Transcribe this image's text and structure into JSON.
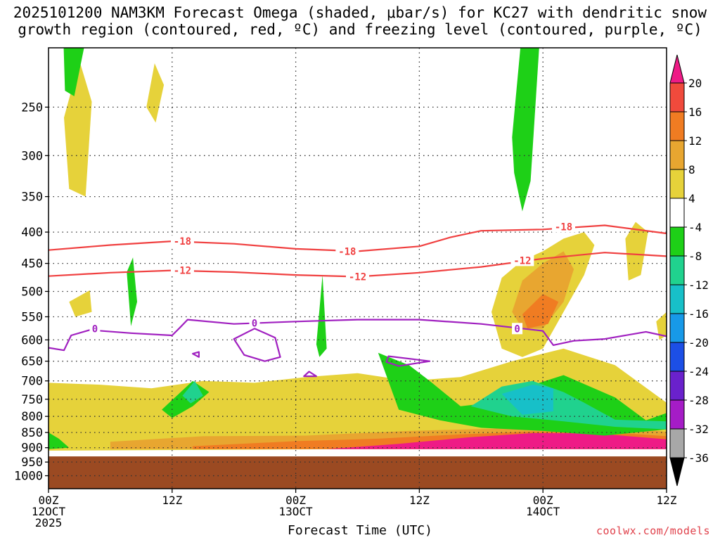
{
  "chart_data": {
    "type": "heatmap",
    "title_line1": "2025101200 NAM3KM Forecast Omega (shaded, μbar/s) for KC27 with dendritic snow",
    "title_line2": "growth region (contoured, red, ºC) and freezing level (contoured, purple, ºC)",
    "xlabel": "Forecast Time (UTC)",
    "ylabel": "",
    "x_ticks": [
      {
        "hour": 0,
        "line1": "00Z",
        "line2": "12OCT",
        "line3": "2025"
      },
      {
        "hour": 12,
        "line1": "12Z",
        "line2": "",
        "line3": ""
      },
      {
        "hour": 24,
        "line1": "00Z",
        "line2": "13OCT",
        "line3": ""
      },
      {
        "hour": 36,
        "line1": "12Z",
        "line2": "",
        "line3": ""
      },
      {
        "hour": 48,
        "line1": "00Z",
        "line2": "14OCT",
        "line3": ""
      },
      {
        "hour": 60,
        "line1": "12Z",
        "line2": "",
        "line3": ""
      }
    ],
    "xlim": [
      0,
      60
    ],
    "y_ticks": [
      "250",
      "300",
      "350",
      "400",
      "450",
      "500",
      "550",
      "600",
      "650",
      "700",
      "750",
      "800",
      "850",
      "900",
      "950",
      "1000"
    ],
    "ylim": [
      200,
      1050
    ],
    "y_scale": "log",
    "grid": true,
    "colorbar": {
      "labels": [
        "20",
        "16",
        "12",
        "8",
        "4",
        "-4",
        "-8",
        "-12",
        "-16",
        "-20",
        "-24",
        "-28",
        "-32",
        "-36"
      ],
      "colors": [
        "#ee1b86",
        "#f04a3c",
        "#f07c22",
        "#e8a630",
        "#e6d23a",
        "#ffffff",
        "#1ed017",
        "#20d28e",
        "#17c0c8",
        "#1799e8",
        "#1c4fe6",
        "#6a21cc",
        "#a51cc6",
        "#a8a8a8",
        "#000000"
      ],
      "placement": "right"
    },
    "ground_color": "#9b4a22",
    "contours": {
      "dgz_color": "#f04040",
      "freezing_color": "#a020c0",
      "dgz": [
        {
          "label": "-18",
          "points": [
            [
              0,
              428
            ],
            [
              6,
              420
            ],
            [
              12,
              414
            ],
            [
              18,
              418
            ],
            [
              24,
              426
            ],
            [
              30,
              430
            ],
            [
              36,
              422
            ],
            [
              39,
              408
            ],
            [
              42,
              398
            ],
            [
              48,
              396
            ],
            [
              54,
              390
            ],
            [
              60,
              402
            ]
          ],
          "labels_at": [
            [
              13,
              414
            ],
            [
              29,
              430
            ],
            [
              50,
              392
            ]
          ]
        },
        {
          "label": "-12",
          "points": [
            [
              0,
              472
            ],
            [
              6,
              466
            ],
            [
              12,
              462
            ],
            [
              18,
              465
            ],
            [
              24,
              470
            ],
            [
              30,
              473
            ],
            [
              36,
              466
            ],
            [
              42,
              456
            ],
            [
              48,
              442
            ],
            [
              54,
              432
            ],
            [
              60,
              438
            ]
          ],
          "labels_at": [
            [
              13,
              462
            ],
            [
              30,
              473
            ],
            [
              46,
              445
            ]
          ]
        }
      ],
      "freezing": [
        {
          "label": "0",
          "points": [
            [
              0,
              618
            ],
            [
              1.5,
              624
            ],
            [
              2.2,
              590
            ],
            [
              4,
              578
            ],
            [
              8,
              585
            ],
            [
              12,
              590
            ],
            [
              12.8,
              572
            ],
            [
              13.5,
              556
            ],
            [
              18,
              565
            ],
            [
              24,
              560
            ],
            [
              30,
              556
            ],
            [
              36,
              556
            ],
            [
              42,
              565
            ],
            [
              48,
              580
            ],
            [
              49,
              612
            ],
            [
              51,
              602
            ],
            [
              54,
              598
            ],
            [
              58,
              582
            ],
            [
              60,
              592
            ]
          ],
          "labels_at": [
            [
              4.5,
              575
            ],
            [
              20,
              563
            ],
            [
              45.5,
              575
            ]
          ]
        },
        {
          "label": "",
          "closed": true,
          "points": [
            [
              18,
              598
            ],
            [
              20,
              575
            ],
            [
              22,
              595
            ],
            [
              22.5,
              640
            ],
            [
              21,
              650
            ],
            [
              19,
              635
            ]
          ],
          "labels_at": []
        },
        {
          "label": "",
          "closed": true,
          "points": [
            [
              32.8,
              652
            ],
            [
              33,
              638
            ],
            [
              37,
              650
            ],
            [
              34,
              662
            ]
          ],
          "labels_at": []
        },
        {
          "label": "",
          "closed": true,
          "points": [
            [
              24.8,
              688
            ],
            [
              25.3,
              676
            ],
            [
              26,
              688
            ]
          ],
          "labels_at": []
        },
        {
          "label": "",
          "closed": true,
          "points": [
            [
              14,
              632
            ],
            [
              14.6,
              628
            ],
            [
              14.6,
              640
            ]
          ],
          "labels_at": []
        }
      ]
    },
    "shaded_regions": [
      {
        "value": 4,
        "points": [
          [
            0,
            705
          ],
          [
            5,
            710
          ],
          [
            10,
            720
          ],
          [
            15,
            700
          ],
          [
            20,
            705
          ],
          [
            25,
            690
          ],
          [
            30,
            680
          ],
          [
            35,
            700
          ],
          [
            40,
            690
          ],
          [
            45,
            650
          ],
          [
            50,
            620
          ],
          [
            55,
            660
          ],
          [
            60,
            760
          ],
          [
            60,
            900
          ],
          [
            0,
            910
          ]
        ]
      },
      {
        "value": 8,
        "points": [
          [
            6,
            880
          ],
          [
            15,
            862
          ],
          [
            25,
            860
          ],
          [
            35,
            845
          ],
          [
            43,
            838
          ],
          [
            50,
            826
          ],
          [
            56,
            832
          ],
          [
            60,
            848
          ],
          [
            60,
            905
          ],
          [
            6,
            905
          ]
        ]
      },
      {
        "value": 12,
        "points": [
          [
            14,
            895
          ],
          [
            24,
            878
          ],
          [
            32,
            870
          ],
          [
            40,
            856
          ],
          [
            47,
            847
          ],
          [
            54,
            848
          ],
          [
            60,
            862
          ],
          [
            60,
            905
          ],
          [
            14,
            905
          ]
        ]
      },
      {
        "value": 20,
        "points": [
          [
            27,
            905
          ],
          [
            34,
            887
          ],
          [
            41,
            865
          ],
          [
            47,
            852
          ],
          [
            53,
            853
          ],
          [
            60,
            872
          ],
          [
            60,
            905
          ]
        ]
      },
      {
        "value": -4,
        "points": [
          [
            32,
            630
          ],
          [
            35,
            660
          ],
          [
            37,
            700
          ],
          [
            40,
            770
          ],
          [
            43,
            760
          ],
          [
            46,
            720
          ],
          [
            50,
            685
          ],
          [
            55,
            745
          ],
          [
            58,
            812
          ],
          [
            60,
            790
          ],
          [
            60,
            840
          ],
          [
            54,
            860
          ],
          [
            48,
            845
          ],
          [
            42,
            835
          ],
          [
            38,
            812
          ],
          [
            34,
            780
          ]
        ]
      },
      {
        "value": -8,
        "points": [
          [
            41,
            770
          ],
          [
            44,
            715
          ],
          [
            47,
            700
          ],
          [
            50,
            730
          ],
          [
            52,
            760
          ],
          [
            55,
            810
          ],
          [
            60,
            815
          ],
          [
            60,
            840
          ],
          [
            55,
            832
          ],
          [
            50,
            815
          ],
          [
            45,
            800
          ]
        ]
      },
      {
        "value": -12,
        "points": [
          [
            44,
            735
          ],
          [
            47,
            710
          ],
          [
            49,
            720
          ],
          [
            49,
            785
          ],
          [
            46,
            795
          ]
        ]
      },
      {
        "value": 4,
        "points": [
          [
            43,
            540
          ],
          [
            44,
            475
          ],
          [
            46,
            445
          ],
          [
            48,
            430
          ],
          [
            50,
            410
          ],
          [
            52,
            400
          ],
          [
            53,
            420
          ],
          [
            52,
            470
          ],
          [
            50,
            540
          ],
          [
            48,
            620
          ],
          [
            46,
            640
          ],
          [
            44,
            620
          ]
        ]
      },
      {
        "value": 8,
        "points": [
          [
            45,
            540
          ],
          [
            46,
            480
          ],
          [
            48,
            450
          ],
          [
            50,
            430
          ],
          [
            51,
            460
          ],
          [
            50,
            520
          ],
          [
            48,
            575
          ],
          [
            46,
            575
          ]
        ]
      },
      {
        "value": 12,
        "points": [
          [
            46,
            545
          ],
          [
            48,
            505
          ],
          [
            49.5,
            520
          ],
          [
            48.5,
            565
          ],
          [
            46.5,
            575
          ]
        ]
      },
      {
        "value": 4,
        "points": [
          [
            1.5,
            260
          ],
          [
            3,
            210
          ],
          [
            4.2,
            245
          ],
          [
            3.6,
            350
          ],
          [
            2,
            340
          ]
        ]
      },
      {
        "value": 4,
        "points": [
          [
            2,
            520
          ],
          [
            4,
            498
          ],
          [
            4.2,
            540
          ],
          [
            2.6,
            550
          ]
        ]
      },
      {
        "value": 4,
        "points": [
          [
            9.5,
            250
          ],
          [
            10.3,
            212
          ],
          [
            11.2,
            230
          ],
          [
            10.4,
            265
          ]
        ]
      },
      {
        "value": -4,
        "points": [
          [
            1.3,
            160
          ],
          [
            3.5,
            120
          ],
          [
            4,
            180
          ],
          [
            2.5,
            240
          ],
          [
            1.6,
            235
          ]
        ]
      },
      {
        "value": -4,
        "points": [
          [
            45,
            280
          ],
          [
            46.5,
            150
          ],
          [
            48,
            160
          ],
          [
            46.8,
            330
          ],
          [
            46,
            370
          ],
          [
            45.2,
            320
          ]
        ]
      },
      {
        "value": -4,
        "points": [
          [
            7.6,
            465
          ],
          [
            8.2,
            440
          ],
          [
            8.6,
            520
          ],
          [
            8,
            570
          ]
        ]
      },
      {
        "value": -4,
        "points": [
          [
            26,
            610
          ],
          [
            26.6,
            470
          ],
          [
            27,
            620
          ],
          [
            26.3,
            640
          ]
        ]
      },
      {
        "value": -4,
        "points": [
          [
            11,
            780
          ],
          [
            14,
            700
          ],
          [
            15.6,
            730
          ],
          [
            14,
            770
          ],
          [
            12,
            805
          ]
        ]
      },
      {
        "value": -8,
        "points": [
          [
            13,
            740
          ],
          [
            14.2,
            700
          ],
          [
            15,
            740
          ],
          [
            13.8,
            762
          ]
        ]
      },
      {
        "value": 4,
        "points": [
          [
            56,
            410
          ],
          [
            57,
            385
          ],
          [
            58.2,
            400
          ],
          [
            57.5,
            470
          ],
          [
            56.3,
            480
          ]
        ]
      },
      {
        "value": 4,
        "points": [
          [
            59,
            560
          ],
          [
            60,
            540
          ],
          [
            60,
            590
          ],
          [
            59.3,
            600
          ]
        ]
      },
      {
        "value": -4,
        "points": [
          [
            0,
            850
          ],
          [
            1,
            870
          ],
          [
            2,
            900
          ],
          [
            0,
            905
          ]
        ]
      }
    ]
  },
  "credit": "coolwx.com/models"
}
